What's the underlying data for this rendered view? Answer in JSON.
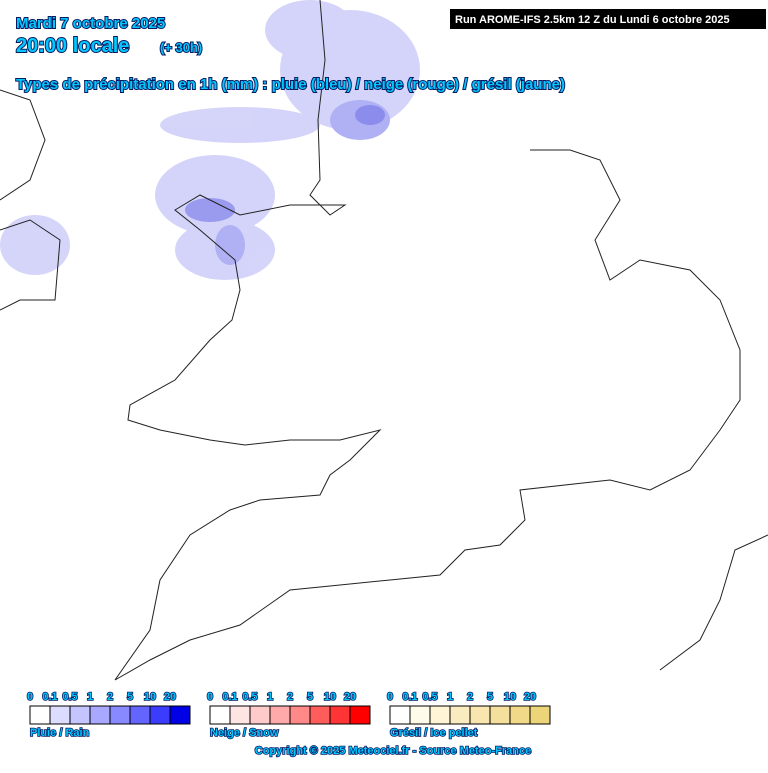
{
  "header": {
    "date": "Mardi 7 octobre 2025",
    "time": "20:00 locale",
    "lead": "(+ 30h)",
    "subtitle": "Types de précipitation en 1h (mm) : pluie (bleu) / neige (rouge) / grésil (jaune)",
    "run": "Run AROME-IFS 2.5km 12 Z du Lundi 6 octobre 2025"
  },
  "legend": [
    {
      "label": "Pluie / Rain",
      "ticks": [
        "0",
        "0.1",
        "0.5",
        "1",
        "2",
        "5",
        "10",
        "20"
      ],
      "colors": [
        "#ffffff",
        "#dcdcff",
        "#c4c4ff",
        "#a8a8ff",
        "#8888ff",
        "#6464ff",
        "#3c3cff",
        "#0000e6"
      ]
    },
    {
      "label": "Neige / Snow",
      "ticks": [
        "0",
        "0.1",
        "0.5",
        "1",
        "2",
        "5",
        "10",
        "20"
      ],
      "colors": [
        "#ffffff",
        "#ffe4e4",
        "#ffcaca",
        "#ffaaaa",
        "#ff8888",
        "#ff5c5c",
        "#ff3434",
        "#ff0000"
      ]
    },
    {
      "label": "Grésil / Ice pellet",
      "ticks": [
        "0",
        "0.1",
        "0.5",
        "1",
        "2",
        "5",
        "10",
        "20"
      ],
      "colors": [
        "#ffffff",
        "#fffbea",
        "#fff4d6",
        "#fbecc0",
        "#f8e6ae",
        "#f4e09c",
        "#f0da8a",
        "#ecd478"
      ]
    }
  ],
  "footer": "Copyright © 2025 Meteociel.fr - Source Meteo-France"
}
